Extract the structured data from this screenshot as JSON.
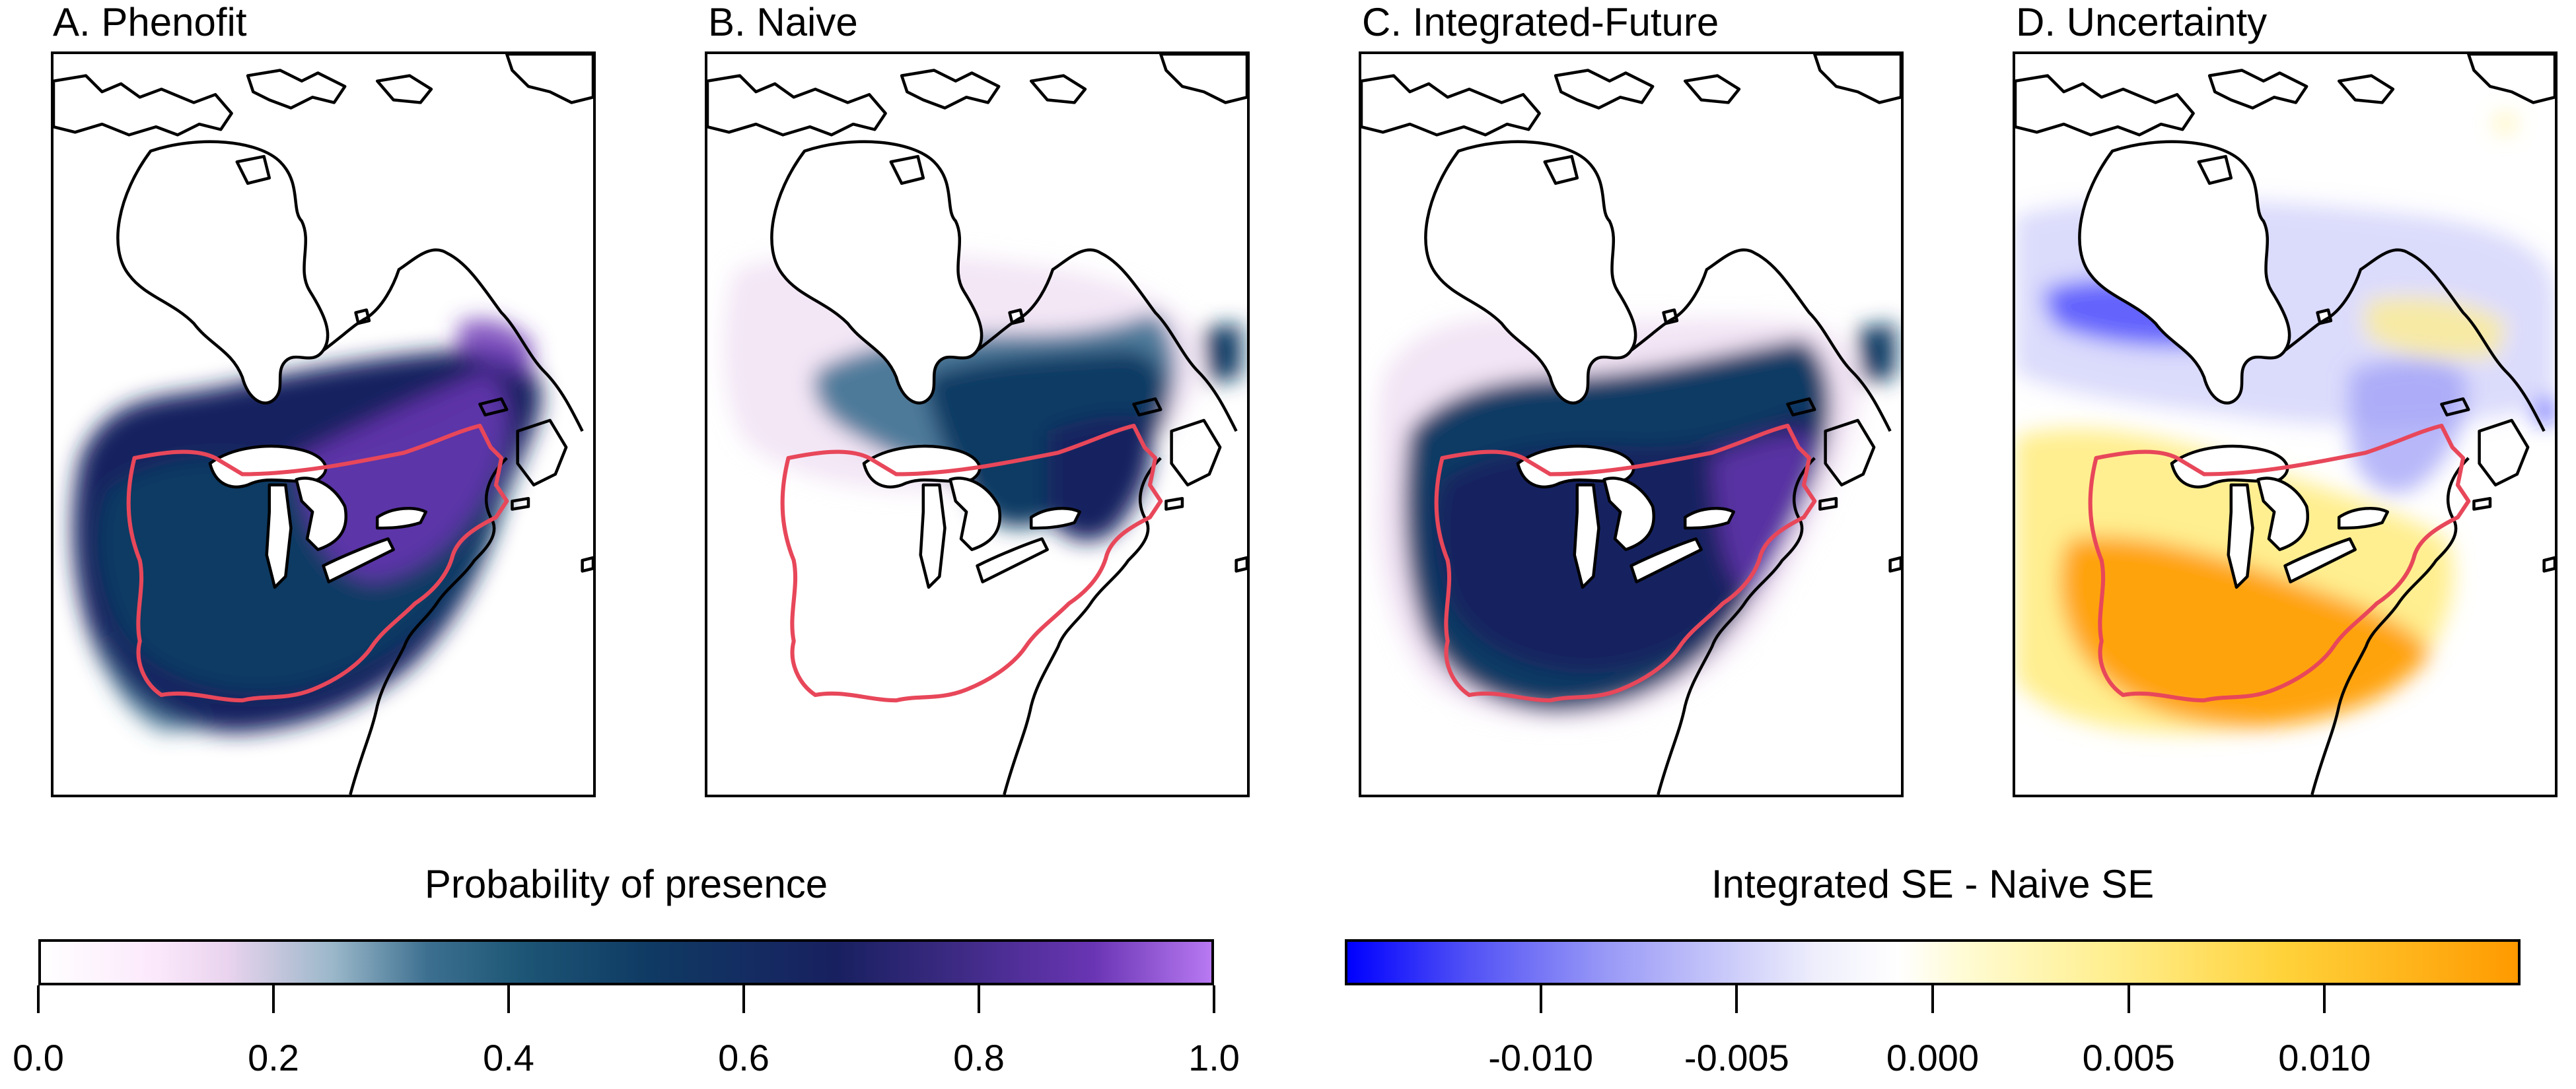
{
  "panels": [
    {
      "id": "A",
      "title": "A. Phenofit"
    },
    {
      "id": "B",
      "title": "B. Naive"
    },
    {
      "id": "C",
      "title": "C. Integrated-Future"
    },
    {
      "id": "D",
      "title": "D. Uncertainty"
    }
  ],
  "legends": {
    "probability": {
      "title": "Probability of presence",
      "ticks": [
        "0.0",
        "0.2",
        "0.4",
        "0.6",
        "0.8",
        "1.0"
      ],
      "range": [
        0.0,
        1.0
      ],
      "colors": [
        "#ffffff",
        "#e9d3ee",
        "#3d7090",
        "#0f3a63",
        "#182060",
        "#6a35b4",
        "#b879f2"
      ]
    },
    "uncertainty": {
      "title": "Integrated SE - Naive SE",
      "ticks": [
        "-0.010",
        "-0.005",
        "0.000",
        "0.005",
        "0.010"
      ],
      "range": [
        -0.015,
        0.015
      ],
      "colors": [
        "#0000ff",
        "#9898f7",
        "#ffffff",
        "#ffef90",
        "#ff9a00"
      ]
    }
  },
  "colors": {
    "range_outline": "#e8475a",
    "coastline": "#000000"
  }
}
